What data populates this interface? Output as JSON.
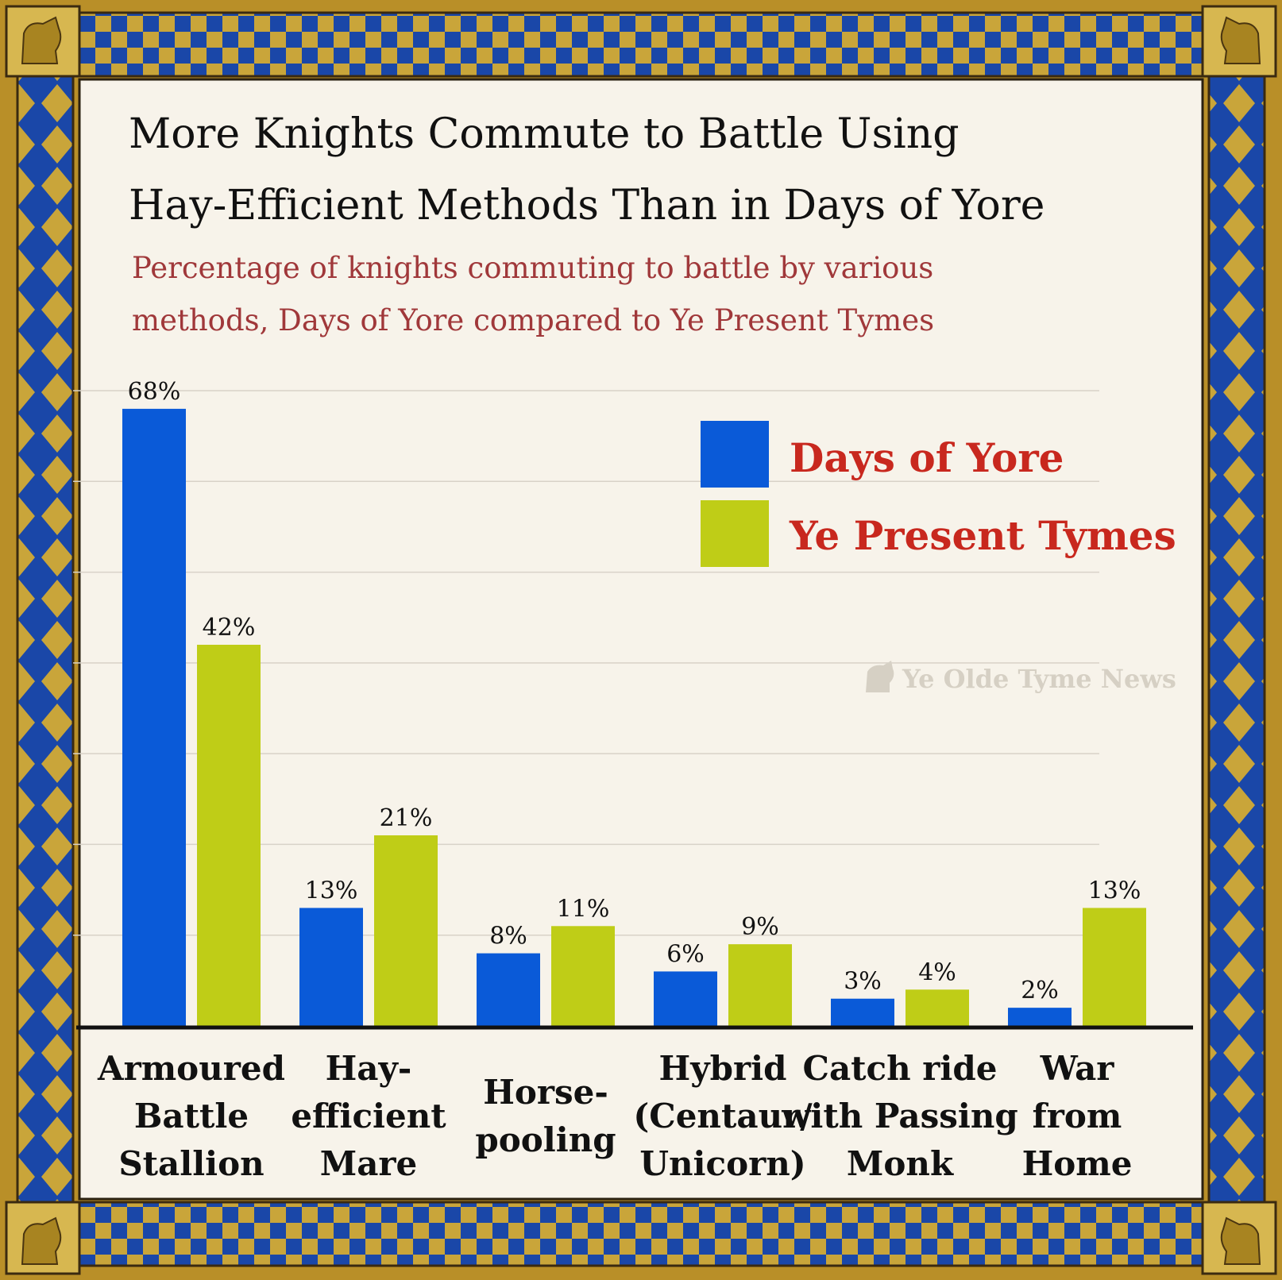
{
  "chart_data": {
    "type": "bar",
    "title": [
      "More Knights Commute to Battle Using",
      "Hay-Efficient Methods Than in Days of Yore"
    ],
    "subtitle": [
      "Percentage of knights commuting to battle by various",
      "methods, Days of Yore compared to Ye Present Tymes"
    ],
    "categories": [
      [
        "Armoured",
        "Battle",
        "Stallion"
      ],
      [
        "Hay-",
        "efficient",
        "Mare"
      ],
      [
        "Horse-",
        "pooling"
      ],
      [
        "Hybrid",
        "(Centaur/",
        "Unicorn)"
      ],
      [
        "Catch ride",
        "with Passing",
        "Monk"
      ],
      [
        "War",
        "from",
        "Home"
      ]
    ],
    "series": [
      {
        "name": "Days of Yore",
        "color": "#0a5ad8",
        "values": [
          68,
          13,
          8,
          6,
          3,
          2
        ],
        "labels": [
          "68%",
          "13%",
          "8%",
          "6%",
          "3%",
          "2%"
        ]
      },
      {
        "name": "Ye Present Tymes",
        "color": "#bfcd17",
        "values": [
          42,
          21,
          11,
          9,
          4,
          13
        ],
        "labels": [
          "42%",
          "21%",
          "11%",
          "9%",
          "4%",
          "13%"
        ]
      }
    ],
    "ylim": [
      0,
      70
    ],
    "grid": true,
    "legend_position": "top-right",
    "watermark": "Ye Olde Tyme News"
  }
}
